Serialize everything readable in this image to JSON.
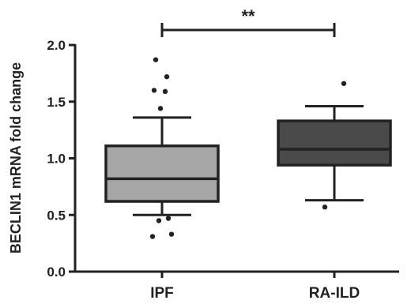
{
  "chart_data": {
    "type": "boxplot",
    "ylabel": "BECLIN1 mRNA fold change",
    "ylim": [
      0,
      2.0
    ],
    "yticks": [
      0.0,
      0.5,
      1.0,
      1.5,
      2.0
    ],
    "ytick_labels": [
      "0.0",
      "0.5",
      "1.0",
      "1.5",
      "2.0"
    ],
    "categories": [
      "IPF",
      "RA-ILD"
    ],
    "grid": false,
    "series": [
      {
        "category": "IPF",
        "whisker_low": 0.5,
        "q1": 0.62,
        "median": 0.82,
        "q3": 1.11,
        "whisker_high": 1.36,
        "outliers": [
          0.31,
          0.33,
          0.45,
          0.47,
          1.44,
          1.59,
          1.6,
          1.72,
          1.87
        ],
        "fill": "#a6a6a6"
      },
      {
        "category": "RA-ILD",
        "whisker_low": 0.63,
        "q1": 0.94,
        "median": 1.08,
        "q3": 1.33,
        "whisker_high": 1.46,
        "outliers": [
          0.57,
          1.66
        ],
        "fill": "#4a4a4a"
      }
    ],
    "significance": {
      "label": "**",
      "between": [
        "IPF",
        "RA-ILD"
      ],
      "y": 2.15
    }
  }
}
